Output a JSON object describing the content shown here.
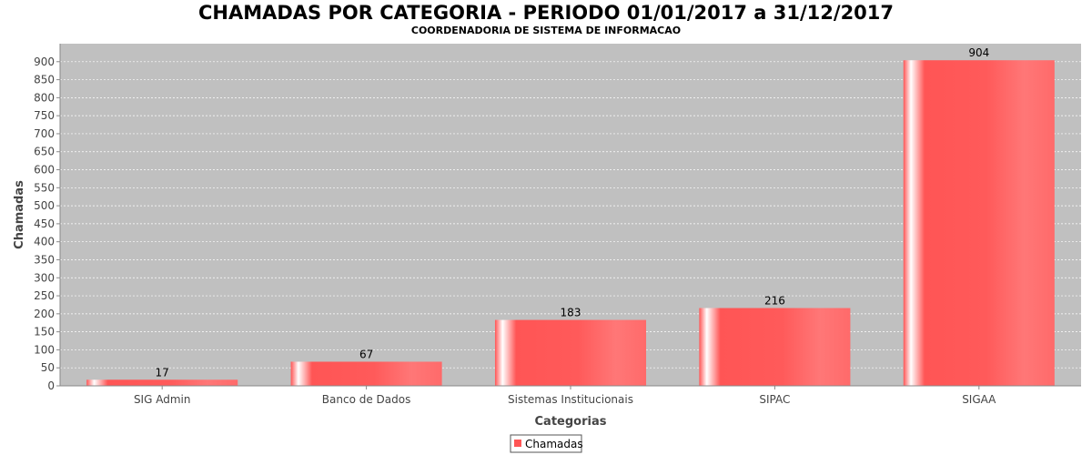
{
  "chart_data": {
    "type": "bar",
    "title": "CHAMADAS POR CATEGORIA - PERIODO 01/01/2017 a 31/12/2017",
    "subtitle": "COORDENADORIA DE SISTEMA DE INFORMACAO",
    "xlabel": "Categorias",
    "ylabel": "Chamadas",
    "categories": [
      "SIG Admin",
      "Banco de Dados",
      "Sistemas Institucionais",
      "SIPAC",
      "SIGAA"
    ],
    "series": [
      {
        "name": "Chamadas",
        "values": [
          17,
          67,
          183,
          216,
          904
        ]
      }
    ],
    "ylim": [
      0,
      950
    ],
    "yticks": [
      0,
      50,
      100,
      150,
      200,
      250,
      300,
      350,
      400,
      450,
      500,
      550,
      600,
      650,
      700,
      750,
      800,
      850,
      900
    ],
    "grid": true,
    "legend": "bottom-center",
    "colors": {
      "bar": "#ff5555",
      "plot_background": "#c0c0c0",
      "gridline": "#ffffff"
    }
  }
}
